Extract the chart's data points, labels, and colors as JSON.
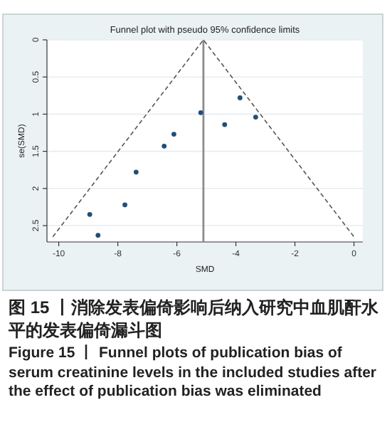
{
  "chart_data": {
    "type": "scatter",
    "title": "Funnel plot with pseudo 95% confidence limits",
    "xlabel": "SMD",
    "ylabel": "se(SMD)",
    "xlim": [
      -10.4,
      0.3
    ],
    "ylim": [
      2.72,
      0
    ],
    "xticks": [
      -10,
      -8,
      -6,
      -4,
      -2,
      0
    ],
    "yticks": [
      0,
      0.5,
      1,
      1.5,
      2,
      2.5
    ],
    "grid": "y",
    "marker": "circle",
    "series": [
      {
        "color": "#1a4f80",
        "x": [
          -3.86,
          -3.33,
          -5.19,
          -4.38,
          -6.1,
          -6.43,
          -7.38,
          -7.76,
          -8.95,
          -8.67
        ],
        "values": [
          0.78,
          1.04,
          0.98,
          1.14,
          1.27,
          1.43,
          1.78,
          2.22,
          2.35,
          2.63
        ]
      },
      {
        "type": "line",
        "line_style": "dashed",
        "marker": "none",
        "color": "#555555",
        "x": [
          -10.2,
          -5.1,
          0
        ],
        "values": [
          2.65,
          0,
          2.65
        ]
      }
    ],
    "ref_lines": [
      {
        "axis": "x",
        "value": -5.1,
        "color": "#8c8c8c"
      }
    ],
    "annotations": [
      "图 15 丨消除发表偏倚影响后纳入研究中血肌酐水平的发表偏倚漏斗图",
      "Figure 15 丨 Funnel plots of publication bias of serum creatinine levels in the included studies after the effect of publication bias was eliminated"
    ]
  }
}
